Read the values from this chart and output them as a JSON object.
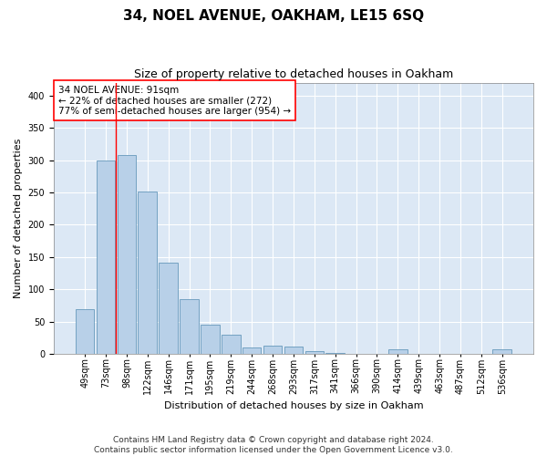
{
  "title": "34, NOEL AVENUE, OAKHAM, LE15 6SQ",
  "subtitle": "Size of property relative to detached houses in Oakham",
  "xlabel": "Distribution of detached houses by size in Oakham",
  "ylabel": "Number of detached properties",
  "categories": [
    "49sqm",
    "73sqm",
    "98sqm",
    "122sqm",
    "146sqm",
    "171sqm",
    "195sqm",
    "219sqm",
    "244sqm",
    "268sqm",
    "293sqm",
    "317sqm",
    "341sqm",
    "366sqm",
    "390sqm",
    "414sqm",
    "439sqm",
    "463sqm",
    "487sqm",
    "512sqm",
    "536sqm"
  ],
  "values": [
    70,
    300,
    308,
    252,
    141,
    85,
    45,
    30,
    10,
    13,
    12,
    5,
    1,
    0,
    0,
    7,
    0,
    0,
    0,
    0,
    7
  ],
  "bar_color": "#b8d0e8",
  "bar_edge_color": "#6699bb",
  "annotation_box_text": "34 NOEL AVENUE: 91sqm\n← 22% of detached houses are smaller (272)\n77% of semi-detached houses are larger (954) →",
  "vline_x": 1.5,
  "vline_color": "red",
  "ylim": [
    0,
    420
  ],
  "yticks": [
    0,
    50,
    100,
    150,
    200,
    250,
    300,
    350,
    400
  ],
  "background_color": "#ffffff",
  "plot_bg_color": "#dce8f5",
  "footer_text": "Contains HM Land Registry data © Crown copyright and database right 2024.\nContains public sector information licensed under the Open Government Licence v3.0.",
  "grid_color": "#ffffff",
  "title_fontsize": 11,
  "subtitle_fontsize": 9,
  "xlabel_fontsize": 8,
  "ylabel_fontsize": 8,
  "tick_fontsize": 7,
  "annotation_fontsize": 7.5,
  "footer_fontsize": 6.5
}
